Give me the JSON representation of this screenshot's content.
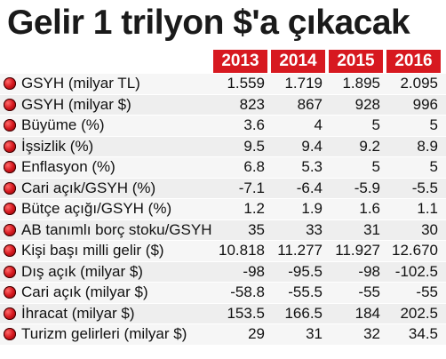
{
  "title": "Gelir 1 trilyon $'a çıkacak",
  "years": [
    "2013",
    "2014",
    "2015",
    "2016"
  ],
  "rows": [
    {
      "label": "GSYH (milyar TL)",
      "values": [
        "1.559",
        "1.719",
        "1.895",
        "2.095"
      ]
    },
    {
      "label": "GSYH (milyar $)",
      "values": [
        "823",
        "867",
        "928",
        "996"
      ]
    },
    {
      "label": "Büyüme (%)",
      "values": [
        "3.6",
        "4",
        "5",
        "5"
      ]
    },
    {
      "label": "İşsizlik (%)",
      "values": [
        "9.5",
        "9.4",
        "9.2",
        "8.9"
      ]
    },
    {
      "label": "Enflasyon (%)",
      "values": [
        "6.8",
        "5.3",
        "5",
        "5"
      ]
    },
    {
      "label": "Cari açık/GSYH (%)",
      "values": [
        "-7.1",
        "-6.4",
        "-5.9",
        "-5.5"
      ]
    },
    {
      "label": "Bütçe açığı/GSYH (%)",
      "values": [
        "1.2",
        "1.9",
        "1.6",
        "1.1"
      ]
    },
    {
      "label": "AB tanımlı borç stoku/GSYH",
      "values": [
        "35",
        "33",
        "31",
        "30"
      ]
    },
    {
      "label": "Kişi başı milli gelir ($)",
      "values": [
        "10.818",
        "11.277",
        "11.927",
        "12.670"
      ]
    },
    {
      "label": "Dış açık (milyar $)",
      "values": [
        "-98",
        "-95.5",
        "-98",
        "-102.5"
      ]
    },
    {
      "label": "Cari açık (milyar $)",
      "values": [
        "-58.8",
        "-55.5",
        "-55",
        "-55"
      ]
    },
    {
      "label": "İhracat (milyar $)",
      "values": [
        "153.5",
        "166.5",
        "184",
        "202.5"
      ]
    },
    {
      "label": "Turizm gelirleri (milyar $)",
      "values": [
        "29",
        "31",
        "32",
        "34.5"
      ]
    }
  ],
  "colors": {
    "accent": "#d71920",
    "row_bg": "#eeeeee"
  }
}
